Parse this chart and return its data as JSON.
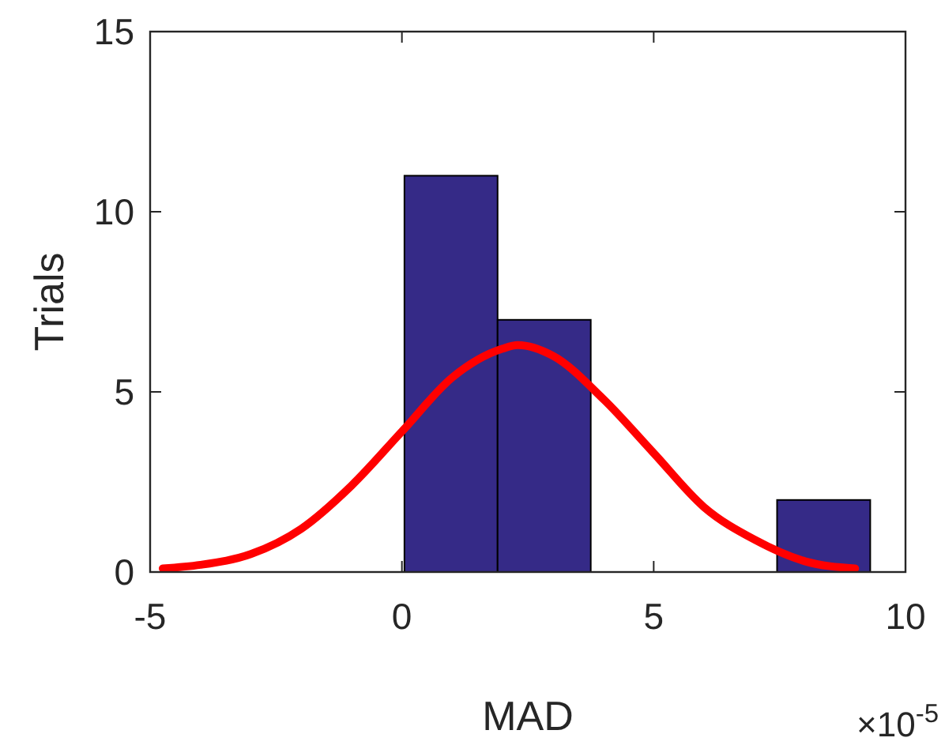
{
  "chart_data": {
    "type": "histogram",
    "xlabel": "MAD",
    "ylabel": "Trials",
    "annotations": [
      "×10$^{-5}$"
    ],
    "xlim": [
      -5,
      10
    ],
    "xticks": [
      -5,
      0,
      5,
      10
    ],
    "ylim": [
      0,
      15
    ],
    "yticks": [
      0,
      5,
      10,
      15
    ],
    "grid": false,
    "series": [
      {
        "color": "#352a87",
        "bins": [
          0.05,
          1.9,
          3.75,
          5.6,
          7.45,
          9.3
        ],
        "values": [
          11,
          7,
          0,
          0,
          2
        ]
      },
      {
        "type": "line",
        "color": "#ff0000",
        "line_style": "solid",
        "marker": "none",
        "x": [
          -4.75,
          -4,
          -3,
          -2,
          -1,
          0,
          1,
          2,
          2.3,
          3,
          4,
          5,
          6,
          7,
          8,
          9
        ],
        "values": [
          0.1,
          0.2,
          0.5,
          1.2,
          2.4,
          3.9,
          5.4,
          6.2,
          6.3,
          6,
          4.8,
          3.3,
          1.8,
          0.9,
          0.3,
          0.1
        ]
      }
    ]
  }
}
